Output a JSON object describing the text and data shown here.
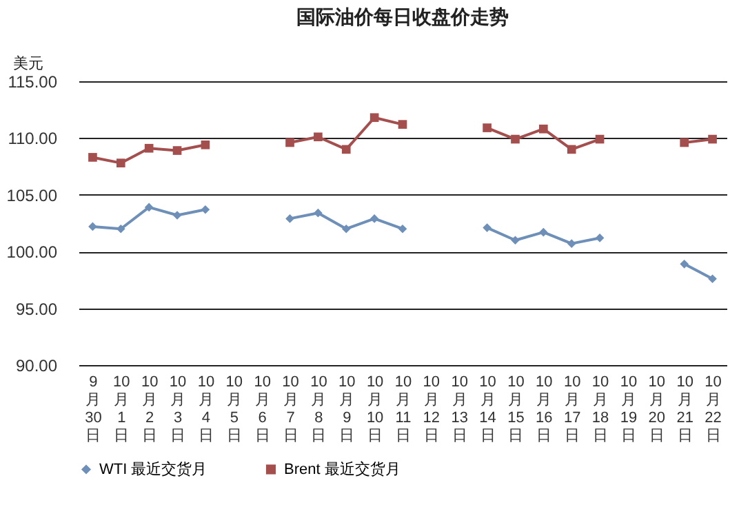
{
  "chart_data": {
    "type": "line",
    "title": "国际油价每日收盘价走势",
    "ylabel": "美元",
    "categories": [
      "9月30日",
      "10月1日",
      "10月2日",
      "10月3日",
      "10月4日",
      "10月5日",
      "10月6日",
      "10月7日",
      "10月8日",
      "10月9日",
      "10月10日",
      "10月11日",
      "10月12日",
      "10月13日",
      "10月14日",
      "10月15日",
      "10月16日",
      "10月17日",
      "10月18日",
      "10月19日",
      "10月20日",
      "10月21日",
      "10月22日"
    ],
    "series": [
      {
        "name": "WTI 最近交货月",
        "color": "#6d8fb8",
        "marker": "diamond",
        "values": [
          102.2,
          102.0,
          103.9,
          103.2,
          103.7,
          null,
          null,
          102.9,
          103.4,
          102.0,
          102.9,
          102.0,
          null,
          null,
          102.1,
          101.0,
          101.7,
          100.7,
          101.2,
          null,
          null,
          98.9,
          97.6
        ]
      },
      {
        "name": "Brent 最近交货月",
        "color": "#a44e4e",
        "marker": "square",
        "values": [
          108.3,
          107.8,
          109.1,
          108.9,
          109.4,
          null,
          null,
          109.6,
          110.1,
          109.0,
          111.8,
          111.2,
          null,
          null,
          110.9,
          109.9,
          110.8,
          109.0,
          109.9,
          null,
          null,
          109.6,
          109.9
        ]
      }
    ],
    "ylim": [
      90,
      115
    ],
    "yticks": [
      {
        "value": 90,
        "label": "90.00"
      },
      {
        "value": 95,
        "label": "95.00"
      },
      {
        "value": 100,
        "label": "100.00"
      },
      {
        "value": 105,
        "label": "105.00"
      },
      {
        "value": 110,
        "label": "110.00"
      },
      {
        "value": 115,
        "label": "115.00"
      }
    ],
    "grid": "y",
    "legend": "bottom",
    "line_style": "solid"
  }
}
